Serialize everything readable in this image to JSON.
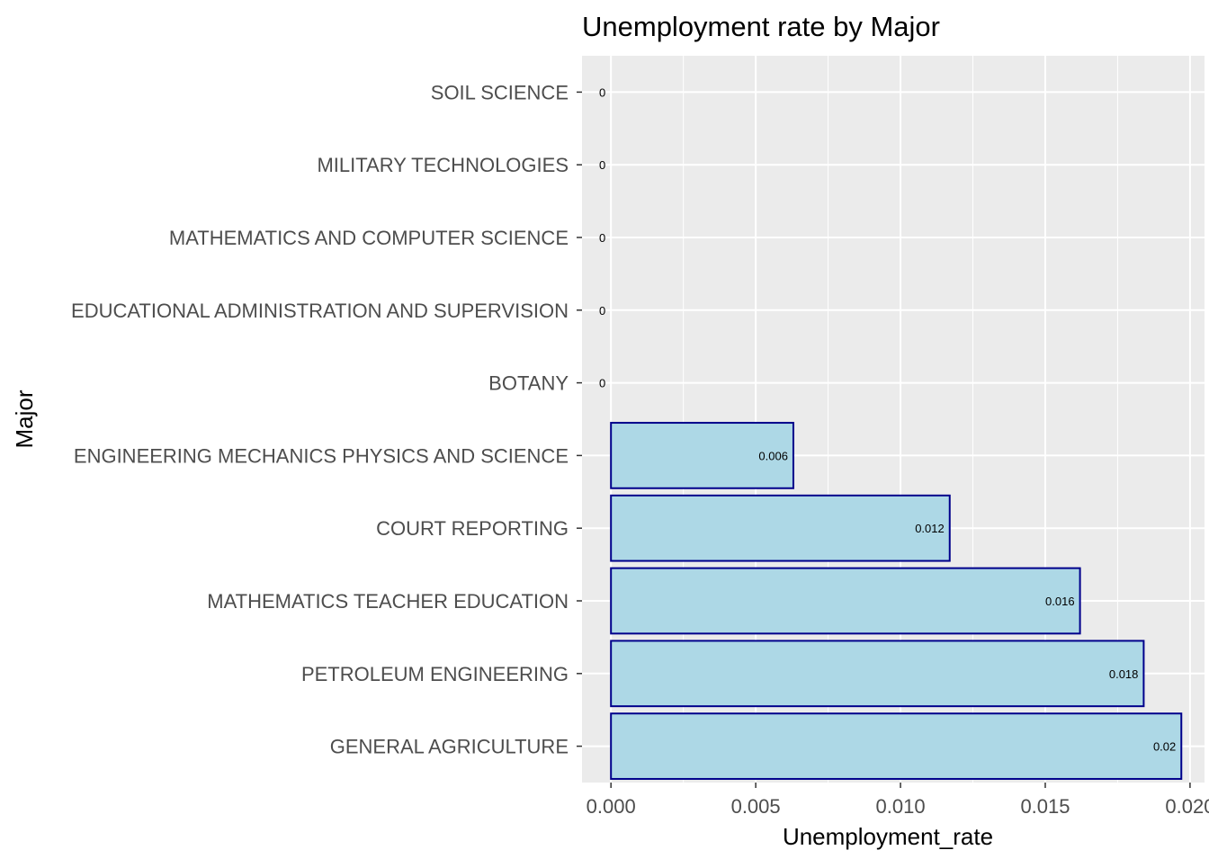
{
  "chart_data": {
    "type": "bar",
    "orientation": "horizontal",
    "title": "Unemployment rate by Major",
    "xlabel": "Unemployment_rate",
    "ylabel": "Major",
    "categories": [
      "SOIL SCIENCE",
      "MILITARY TECHNOLOGIES",
      "MATHEMATICS AND COMPUTER SCIENCE",
      "EDUCATIONAL ADMINISTRATION AND SUPERVISION",
      "BOTANY",
      "ENGINEERING MECHANICS PHYSICS AND SCIENCE",
      "COURT REPORTING",
      "MATHEMATICS TEACHER EDUCATION",
      "PETROLEUM ENGINEERING",
      "GENERAL AGRICULTURE"
    ],
    "values": [
      0,
      0,
      0,
      0,
      0,
      0.0063,
      0.0117,
      0.0162,
      0.0184,
      0.0197
    ],
    "data_labels": [
      "0",
      "0",
      "0",
      "0",
      "0",
      "0.006",
      "0.012",
      "0.016",
      "0.018",
      "0.02"
    ],
    "xlim": [
      -0.001,
      0.0205
    ],
    "xticks": [
      0,
      0.005,
      0.01,
      0.015,
      0.02
    ],
    "xtick_labels": [
      "0.000",
      "0.005",
      "0.010",
      "0.015",
      "0.020"
    ],
    "grid": true,
    "colors": {
      "bar_fill": "#add8e6",
      "bar_stroke": "#00008b",
      "panel_bg": "#ebebeb",
      "grid": "#ffffff"
    }
  }
}
